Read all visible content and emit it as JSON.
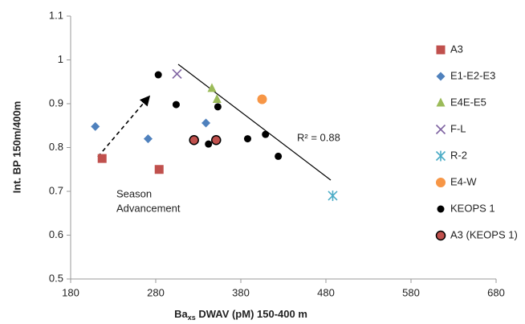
{
  "chart_data": {
    "type": "scatter",
    "x_label": {
      "base": "Ba",
      "sub": "xs",
      "rest": " DWAV (pM) 150-400 m"
    },
    "y_label": "Int. BP 150m/400m",
    "annotations": [
      "R² = 0.88",
      "Season",
      "Advancement"
    ],
    "xlim": [
      180,
      680
    ],
    "xticks": [
      180,
      280,
      380,
      480,
      580,
      680
    ],
    "ylim": [
      0.5,
      1.1
    ],
    "yticks": [
      0.5,
      0.6,
      0.7,
      0.8,
      0.9,
      1,
      1.1
    ],
    "series": [
      {
        "name": "A3",
        "color": "#c0504d",
        "marker": "square",
        "x": [
          217,
          284
        ],
        "values": [
          0.775,
          0.75
        ]
      },
      {
        "name": "E1-E2-E3",
        "color": "#4f81bd",
        "marker": "diamond",
        "x": [
          209,
          271,
          339
        ],
        "values": [
          0.848,
          0.82,
          0.856
        ]
      },
      {
        "name": "E4E-E5",
        "color": "#9bbb59",
        "marker": "triangle",
        "x": [
          346,
          352
        ],
        "values": [
          0.935,
          0.91
        ]
      },
      {
        "name": "F-L",
        "color": "#8064a2",
        "marker": "x",
        "x": [
          305
        ],
        "values": [
          0.968
        ]
      },
      {
        "name": "R-2",
        "color": "#4bacc6",
        "marker": "star",
        "x": [
          488
        ],
        "values": [
          0.69
        ]
      },
      {
        "name": "E4-W",
        "color": "#f79646",
        "marker": "circle",
        "x": [
          405
        ],
        "values": [
          0.91
        ]
      },
      {
        "name": "KEOPS 1",
        "color": "#000000",
        "marker": "circle",
        "x": [
          283,
          304,
          353,
          342,
          388,
          409,
          424
        ],
        "values": [
          0.966,
          0.898,
          0.893,
          0.808,
          0.82,
          0.83,
          0.78
        ]
      },
      {
        "name": "A3 (KEOPS 1)",
        "color": "#c0504d",
        "marker": "circle-outline",
        "x": [
          325,
          351
        ],
        "values": [
          0.817,
          0.817
        ]
      }
    ]
  }
}
